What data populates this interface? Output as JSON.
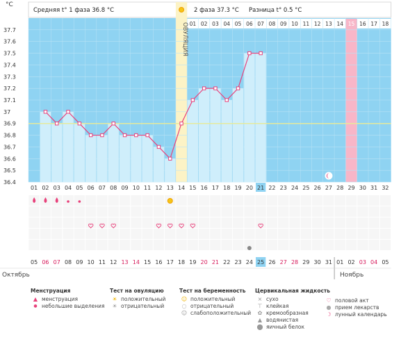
{
  "unit": "°C",
  "header": {
    "phase1": "Средняя t° 1 фаза 36.8 °C",
    "phase2": "2 фаза 37.3 °C",
    "diff": "Разница t° 0.5 °C"
  },
  "ovulation_label": "ОВУЛЯЦИЯ",
  "cycle_days": [
    "01",
    "02",
    "03",
    "04",
    "05",
    "06",
    "07",
    "08",
    "09",
    "10",
    "11",
    "12",
    "13",
    "14",
    "15",
    "16",
    "17",
    "18",
    "19",
    "20",
    "21",
    "22",
    "23",
    "24",
    "25",
    "26",
    "27",
    "28",
    "29",
    "30",
    "31",
    "32"
  ],
  "phase2_numbers": [
    "01",
    "02",
    "03",
    "04",
    "05",
    "06",
    "07",
    "08",
    "09",
    "10",
    "11",
    "12",
    "13",
    "14",
    "15",
    "16",
    "17",
    "18"
  ],
  "calendar_dates": [
    "05",
    "06",
    "07",
    "08",
    "09",
    "10",
    "11",
    "12",
    "13",
    "14",
    "15",
    "16",
    "17",
    "18",
    "19",
    "20",
    "21",
    "22",
    "23",
    "24",
    "25",
    "26",
    "27",
    "28",
    "29",
    "30",
    "31",
    "01",
    "02",
    "03",
    "04",
    "05"
  ],
  "red_date_indices": [
    1,
    2,
    8,
    9,
    15,
    16,
    22,
    23,
    29,
    30
  ],
  "month_left": "Октябрь",
  "month_right": "Ноябрь",
  "colors": {
    "sky": "#8fd3f2",
    "bar": "#cfeefb",
    "line": "#e8417b",
    "ovulation": "#fcf3c6",
    "highlight_pink": "#f8b6c8",
    "today": "#8fd3f2",
    "coverline": "#e6ea9c"
  },
  "chart_data": {
    "type": "line",
    "x": [
      1,
      2,
      3,
      4,
      5,
      6,
      7,
      8,
      9,
      10,
      11,
      12,
      13,
      14,
      15,
      16,
      17,
      18,
      19,
      20,
      21
    ],
    "y": [
      null,
      37.0,
      36.9,
      37.0,
      36.9,
      36.8,
      36.8,
      36.9,
      36.8,
      36.8,
      36.8,
      36.7,
      36.6,
      36.9,
      37.1,
      37.2,
      37.2,
      37.1,
      37.2,
      37.5,
      37.5
    ],
    "ylim": [
      36.4,
      37.8
    ],
    "yticks": [
      "36.4",
      "36.5",
      "36.6",
      "36.7",
      "36.8",
      "36.9",
      "37",
      "37.1",
      "37.2",
      "37.3",
      "37.4",
      "37.5",
      "37.6",
      "37.7"
    ],
    "ylabel": "°C",
    "coverline": 36.9,
    "ovulation_day": 14,
    "highlighted_day": 29,
    "current_day": 21
  },
  "symbols": {
    "menstruation": {
      "heavy_days": [
        1,
        2,
        3
      ],
      "light_days": [
        4,
        5
      ]
    },
    "ovulation_test_positive_day": 13,
    "intercourse_days": [
      6,
      7,
      8,
      12,
      13,
      14,
      15,
      21
    ],
    "medication_day": 20,
    "lunar_day": 27
  },
  "legend": {
    "menstruation": {
      "title": "Менструация",
      "items": [
        "менструация",
        "небольшие выделения"
      ]
    },
    "ovulation_test": {
      "title": "Тест на овуляцию",
      "items": [
        "положительный",
        "отрицательный"
      ]
    },
    "pregnancy_test": {
      "title": "Тест на беременность",
      "items": [
        "положительный",
        "отрицательный",
        "слабоположительный"
      ]
    },
    "cervical": {
      "title": "Цервикальная жидкость",
      "items": [
        "сухо",
        "клейкая",
        "кремообразная",
        "водянистая",
        "яичный белок"
      ]
    },
    "other": {
      "items": [
        "половой акт",
        "прием лекарств",
        "лунный календарь"
      ]
    }
  }
}
